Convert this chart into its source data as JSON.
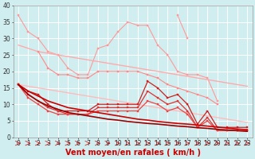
{
  "background_color": "#d0eef0",
  "grid_color": "#ffffff",
  "xlabel": "Vent moyen/en rafales ( km/h )",
  "x": [
    0,
    1,
    2,
    3,
    4,
    5,
    6,
    7,
    8,
    9,
    10,
    11,
    12,
    13,
    14,
    15,
    16,
    17,
    18,
    19,
    20,
    21,
    22,
    23
  ],
  "ylim": [
    0,
    40
  ],
  "xlim": [
    -0.5,
    23.5
  ],
  "yticks": [
    0,
    5,
    10,
    15,
    20,
    25,
    30,
    35,
    40
  ],
  "series": [
    {
      "color": "#ff9999",
      "linewidth": 0.8,
      "marker": "s",
      "markersize": 1.5,
      "values": [
        37,
        32,
        30,
        26,
        25,
        21,
        19,
        19,
        27,
        28,
        32,
        35,
        34,
        34,
        28,
        25,
        20,
        19,
        19,
        18,
        11,
        null,
        null,
        null
      ]
    },
    {
      "color": "#ff9999",
      "linewidth": 0.8,
      "marker": "s",
      "markersize": 1.5,
      "values": [
        null,
        null,
        null,
        null,
        null,
        null,
        null,
        null,
        null,
        null,
        null,
        null,
        null,
        null,
        null,
        null,
        37,
        30,
        null,
        null,
        null,
        null,
        null,
        null
      ]
    },
    {
      "color": "#ffaaaa",
      "linewidth": 1.0,
      "marker": null,
      "markersize": 0,
      "values": [
        28,
        27,
        26,
        25.5,
        25,
        24.5,
        24,
        23.5,
        23,
        22.5,
        22,
        21.5,
        21,
        20.5,
        20,
        19.5,
        19,
        18.5,
        18,
        17.5,
        17,
        16.5,
        16,
        15.5
      ]
    },
    {
      "color": "#ffbbbb",
      "linewidth": 1.0,
      "marker": null,
      "markersize": 0,
      "values": [
        16,
        15.5,
        15,
        14.5,
        14,
        13.5,
        13,
        12.5,
        12,
        11.5,
        11,
        10.5,
        10,
        9.5,
        9,
        8.5,
        8,
        7.5,
        7,
        6.5,
        6,
        5.5,
        5,
        4.5
      ]
    },
    {
      "color": "#ff8888",
      "linewidth": 0.8,
      "marker": "s",
      "markersize": 1.5,
      "values": [
        null,
        null,
        26,
        21,
        19,
        19,
        18,
        18,
        20,
        20,
        20,
        20,
        20,
        19,
        18,
        16,
        15,
        14,
        13,
        12,
        10,
        null,
        null,
        null
      ]
    },
    {
      "color": "#cc2222",
      "linewidth": 0.9,
      "marker": "s",
      "markersize": 1.5,
      "values": [
        16,
        14,
        13,
        10,
        8,
        8,
        8,
        8,
        10,
        10,
        10,
        10,
        10,
        17,
        15,
        12,
        13,
        10,
        4,
        8,
        3,
        3,
        3,
        3
      ]
    },
    {
      "color": "#dd3333",
      "linewidth": 0.9,
      "marker": "s",
      "markersize": 1.5,
      "values": [
        16,
        13,
        11,
        9,
        8,
        7,
        7,
        7,
        9,
        9,
        9,
        9,
        9,
        14,
        12,
        10,
        11,
        8,
        3,
        6,
        2,
        2,
        2,
        2
      ]
    },
    {
      "color": "#ee4444",
      "linewidth": 0.9,
      "marker": "s",
      "markersize": 1.5,
      "values": [
        16,
        12,
        10,
        8,
        7,
        7,
        7,
        7,
        8,
        8,
        8,
        8,
        8,
        11,
        10,
        8,
        9,
        7,
        3,
        5,
        2,
        2,
        2,
        2
      ]
    },
    {
      "color": "#cc0000",
      "linewidth": 1.2,
      "marker": null,
      "markersize": 0,
      "values": [
        16,
        14,
        12.5,
        11,
        10,
        9,
        8.5,
        8,
        7.5,
        7,
        6.5,
        6,
        5.5,
        5.2,
        4.8,
        4.5,
        4.2,
        4.0,
        3.7,
        3.4,
        3.1,
        2.8,
        2.5,
        2.3
      ]
    },
    {
      "color": "#990000",
      "linewidth": 1.2,
      "marker": null,
      "markersize": 0,
      "values": [
        16,
        13,
        11,
        9.5,
        8.5,
        7.5,
        7,
        6.5,
        6,
        5.5,
        5.2,
        4.8,
        4.5,
        4.2,
        4.0,
        3.7,
        3.4,
        3.2,
        2.9,
        2.7,
        2.4,
        2.2,
        2.0,
        1.8
      ]
    }
  ],
  "arrow_color": "#cc0000",
  "title_fontsize": 7,
  "xlabel_fontsize": 7,
  "tick_fontsize": 5.5
}
